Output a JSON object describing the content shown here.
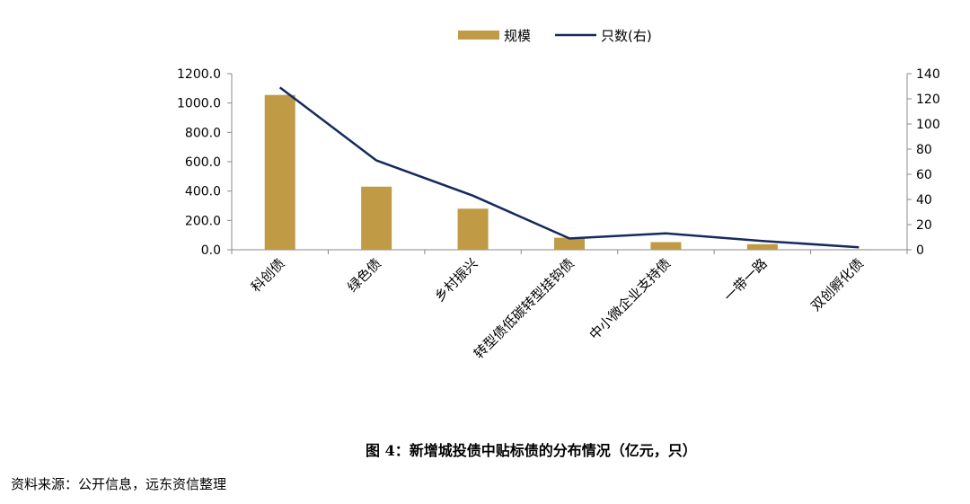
{
  "chart_data": {
    "type": "bar",
    "categories": [
      "科创债",
      "绿色债",
      "乡村振兴",
      "转型债低碳转型挂钩债",
      "中小微企业支持债",
      "一带一路",
      "双创孵化债"
    ],
    "series": [
      {
        "name": "规模",
        "type": "bar",
        "axis": "left",
        "values": [
          1055,
          430,
          280,
          82,
          52,
          38,
          4
        ]
      },
      {
        "name": "只数(右)",
        "type": "line",
        "axis": "right",
        "values": [
          129,
          71,
          43,
          9,
          13,
          7,
          2
        ]
      }
    ],
    "y_left": {
      "min": 0,
      "max": 1200,
      "ticks": [
        "0.0",
        "200.0",
        "400.0",
        "600.0",
        "800.0",
        "1000.0",
        "1200.0"
      ]
    },
    "y_right": {
      "min": 0,
      "max": 140,
      "ticks": [
        "0",
        "20",
        "40",
        "60",
        "80",
        "100",
        "120",
        "140"
      ]
    },
    "legend_position": "top-center",
    "grid": false,
    "colors": {
      "bar": "#C09A45",
      "line": "#152A5E",
      "axis": "#888888"
    }
  },
  "caption": "图 4：新增城投债中贴标债的分布情况（亿元，只）",
  "source": "资料来源：公开信息，远东资信整理"
}
